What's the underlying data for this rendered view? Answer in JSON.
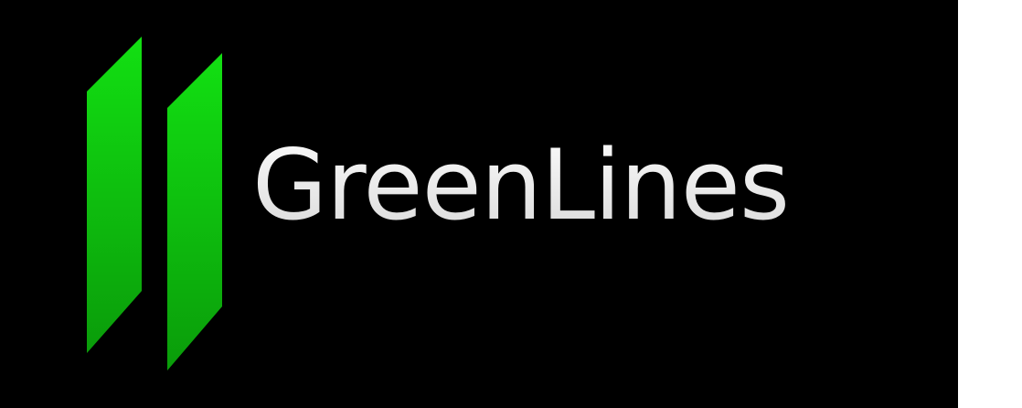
{
  "logo": {
    "wordmark": "GreenLines",
    "icon": "two-slanted-bars-icon",
    "colors": {
      "background": "#000000",
      "bar_top": "#12e012",
      "bar_bottom": "#0a9c0a",
      "text": "#e6e6e6",
      "margin": "#ffffff"
    }
  }
}
